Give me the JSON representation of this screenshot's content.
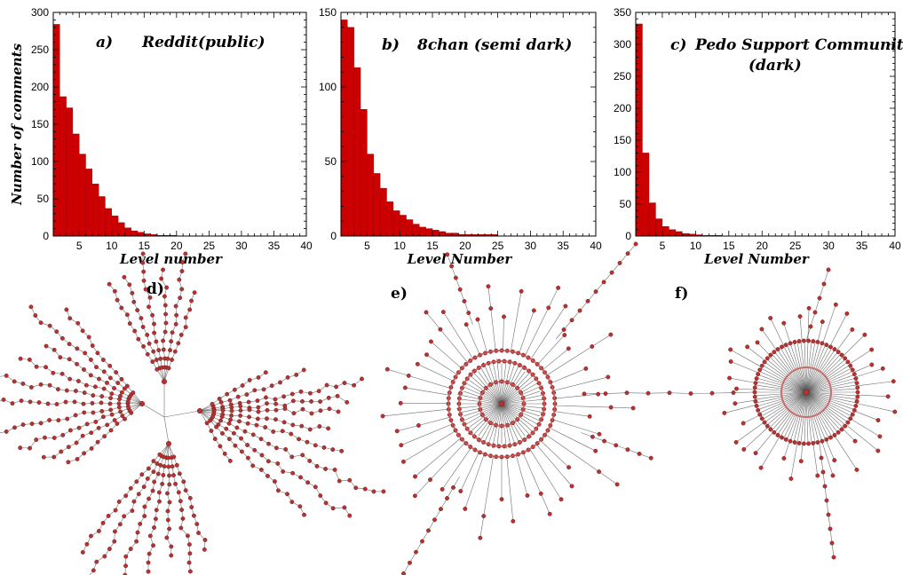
{
  "colors": {
    "bar": "#cc0000",
    "bar_edge": "#a00000",
    "node": "#b83232",
    "edge": "#555555"
  },
  "chart_data": [
    {
      "type": "bar",
      "title_letter": "a)",
      "title": "Reddit(public)",
      "xlabel": "Level number",
      "ylabel": "Number of comments",
      "xlim": [
        1,
        40
      ],
      "ylim": [
        0,
        300
      ],
      "xticks": [
        5,
        10,
        15,
        20,
        25,
        30,
        35,
        40
      ],
      "yticks": [
        0,
        50,
        100,
        150,
        200,
        250,
        300
      ],
      "x": [
        1,
        2,
        3,
        4,
        5,
        6,
        7,
        8,
        9,
        10,
        11,
        12,
        13,
        14,
        15,
        16,
        17,
        18,
        19,
        20,
        21,
        22,
        23,
        24,
        25,
        26,
        27,
        28,
        29,
        30,
        31,
        32,
        33,
        34,
        35,
        36,
        37,
        38,
        39
      ],
      "values": [
        284,
        187,
        172,
        137,
        110,
        90,
        70,
        53,
        37,
        27,
        18,
        11,
        7,
        5,
        3,
        2,
        1,
        1,
        1,
        0,
        0,
        0,
        0,
        0,
        0,
        0,
        0,
        0,
        0,
        0,
        0,
        0,
        0,
        0,
        0,
        0,
        0,
        0,
        0
      ]
    },
    {
      "type": "bar",
      "title_letter": "b)",
      "title": "8chan (semi dark)",
      "xlabel": "Level Number",
      "ylabel": "",
      "xlim": [
        1,
        40
      ],
      "ylim": [
        0,
        150
      ],
      "xticks": [
        5,
        10,
        15,
        20,
        25,
        30,
        35,
        40
      ],
      "yticks": [
        0,
        50,
        100,
        150
      ],
      "x": [
        1,
        2,
        3,
        4,
        5,
        6,
        7,
        8,
        9,
        10,
        11,
        12,
        13,
        14,
        15,
        16,
        17,
        18,
        19,
        20,
        21,
        22,
        23,
        24,
        25,
        26,
        27,
        28,
        29,
        30,
        31,
        32,
        33,
        34,
        35,
        36,
        37,
        38,
        39
      ],
      "values": [
        145,
        140,
        113,
        85,
        55,
        42,
        32,
        23,
        17,
        14,
        11,
        8,
        6,
        5,
        4,
        3,
        2,
        2,
        1,
        1,
        1,
        1,
        1,
        1,
        0,
        0,
        0,
        0,
        0,
        0,
        0,
        0,
        0,
        0,
        0,
        0,
        0,
        0,
        0
      ]
    },
    {
      "type": "bar",
      "title_letter": "c)",
      "title": "Pedo Support Community",
      "title_line2": "(dark)",
      "xlabel": "Level Number",
      "ylabel": "",
      "xlim": [
        1,
        40
      ],
      "ylim": [
        0,
        350
      ],
      "xticks": [
        5,
        10,
        15,
        20,
        25,
        30,
        35,
        40
      ],
      "yticks": [
        0,
        50,
        100,
        150,
        200,
        250,
        300,
        350
      ],
      "x": [
        1,
        2,
        3,
        4,
        5,
        6,
        7,
        8,
        9,
        10,
        11,
        12,
        13,
        14,
        15,
        16,
        17,
        18,
        19,
        20,
        21,
        22,
        23,
        24,
        25,
        26,
        27,
        28,
        29,
        30,
        31,
        32,
        33,
        34,
        35,
        36,
        37,
        38,
        39
      ],
      "values": [
        332,
        130,
        52,
        27,
        15,
        10,
        7,
        4,
        3,
        2,
        1,
        1,
        1,
        0,
        0,
        0,
        0,
        0,
        0,
        0,
        0,
        0,
        0,
        0,
        0,
        0,
        0,
        0,
        0,
        0,
        0,
        0,
        0,
        0,
        0,
        0,
        0,
        0,
        0
      ]
    }
  ],
  "networks": [
    {
      "letter": "d)",
      "style": "branching-tree"
    },
    {
      "letter": "e)",
      "style": "concentric-rings"
    },
    {
      "letter": "f)",
      "style": "hub-star"
    }
  ]
}
